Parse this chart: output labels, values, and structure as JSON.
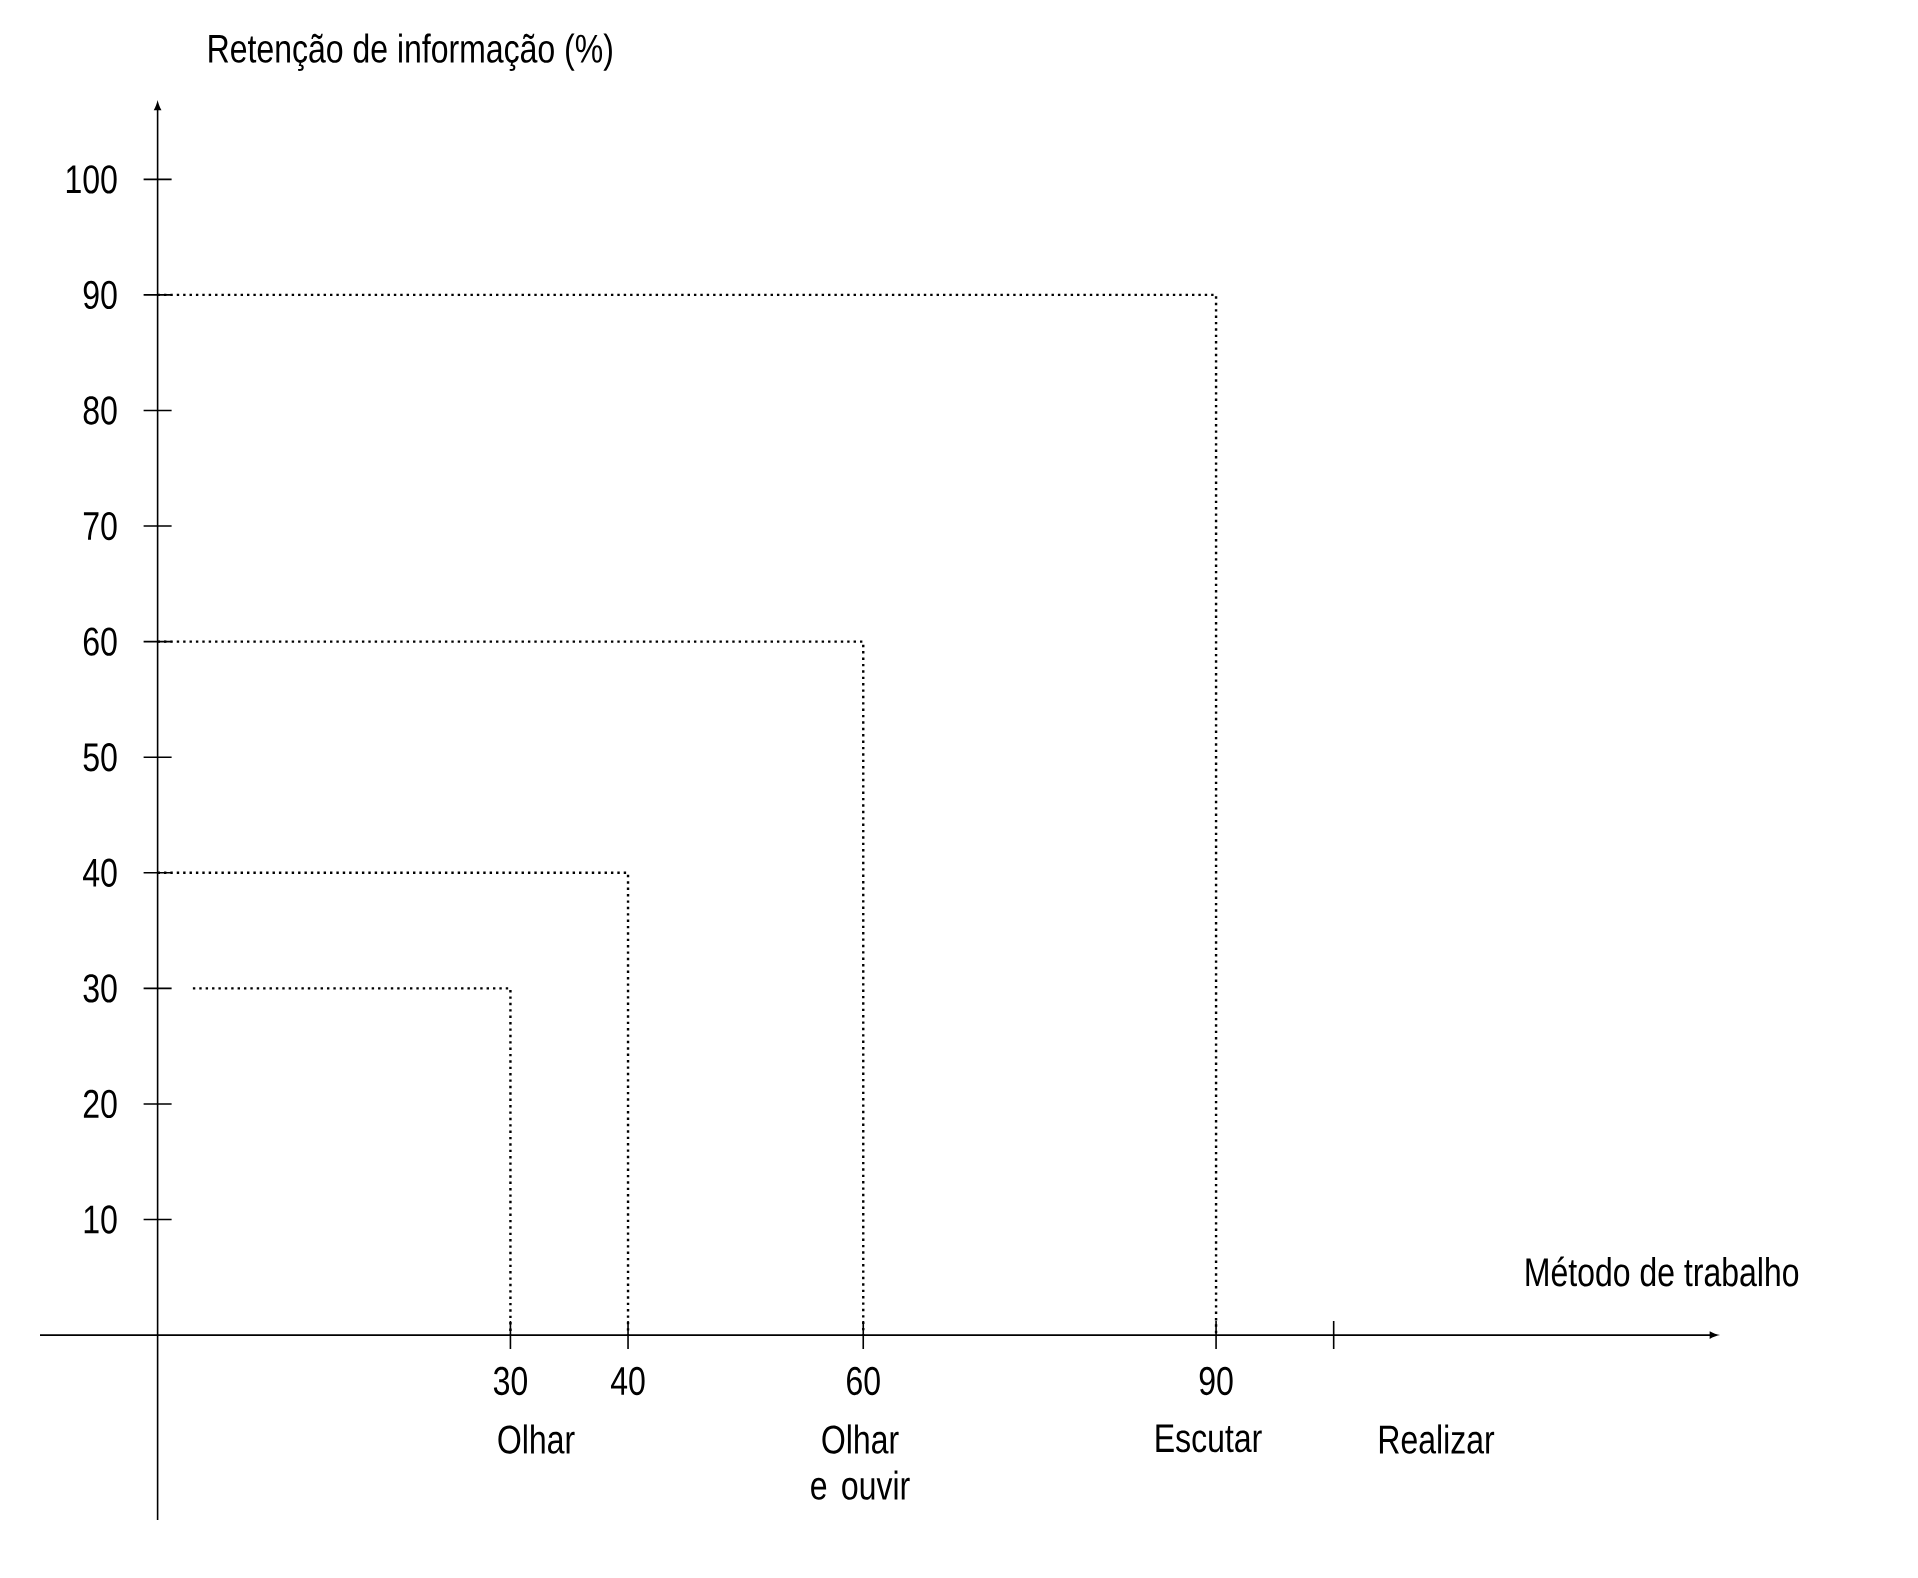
{
  "chart_data": {
    "type": "line",
    "ylabel": "Retenção de informação (%)",
    "xlabel": "Método de trabalho",
    "xlim": [
      -10,
      132
    ],
    "ylim": [
      -16,
      106
    ],
    "xticks": [
      30,
      40,
      60,
      90,
      {
        "value": 100,
        "label": null
      }
    ],
    "yticks": [
      10,
      20,
      30,
      40,
      50,
      60,
      70,
      80,
      90,
      100
    ],
    "line_style": "dotted",
    "marker": "none",
    "grid": false,
    "series": [
      {
        "color": "#000000",
        "x": [
          3,
          30,
          30
        ],
        "values": [
          30,
          30,
          0
        ]
      },
      {
        "color": "#000000",
        "x": [
          0,
          40,
          40
        ],
        "values": [
          40,
          40,
          0
        ]
      },
      {
        "color": "#000000",
        "x": [
          0,
          60,
          60
        ],
        "values": [
          60,
          60,
          0
        ]
      },
      {
        "color": "#000000",
        "x": [
          0,
          90,
          90
        ],
        "values": [
          90,
          90,
          0
        ]
      }
    ],
    "annotations": [
      "Olhar",
      "Olhar e ouvir",
      "Escutar",
      "Realizar"
    ]
  }
}
